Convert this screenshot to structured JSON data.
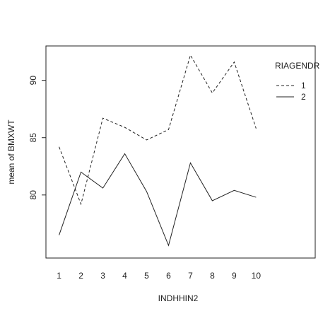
{
  "chart_data": {
    "type": "line",
    "title": "",
    "xlabel": "INDHHIN2",
    "ylabel": "mean of  BMXWT",
    "x": [
      1,
      2,
      3,
      4,
      5,
      6,
      7,
      8,
      9,
      10
    ],
    "xticks": [
      "1",
      "2",
      "3",
      "4",
      "5",
      "6",
      "7",
      "8",
      "9",
      "10"
    ],
    "yticks": [
      80,
      85,
      90
    ],
    "ylim": [
      74.5,
      93.0
    ],
    "grid": false,
    "legend": {
      "title": "RIAGENDR",
      "placement": "top-right"
    },
    "series": [
      {
        "name": "1",
        "line_style": "dashed",
        "values": [
          84.2,
          79.2,
          86.7,
          85.9,
          84.8,
          85.7,
          92.2,
          88.9,
          91.6,
          85.8
        ]
      },
      {
        "name": "2",
        "line_style": "solid",
        "values": [
          76.5,
          82.0,
          80.6,
          83.6,
          80.3,
          75.6,
          82.8,
          79.5,
          80.4,
          79.8
        ]
      }
    ],
    "colors": {
      "line": "#222222",
      "frame": "#222222",
      "background": "#ffffff"
    }
  }
}
